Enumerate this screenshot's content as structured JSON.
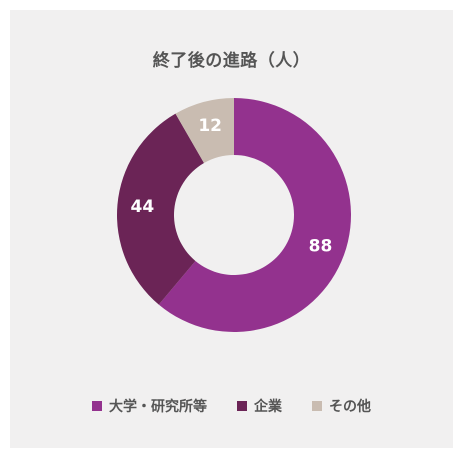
{
  "chart_data": {
    "type": "pie",
    "title": "終了後の進路（人）",
    "categories": [
      "大学・研究所等",
      "企業",
      "その他"
    ],
    "values": [
      88,
      44,
      12
    ],
    "colors": [
      "#93328e",
      "#6b2456",
      "#c9bcb1"
    ],
    "donut": true,
    "legend_position": "bottom"
  }
}
